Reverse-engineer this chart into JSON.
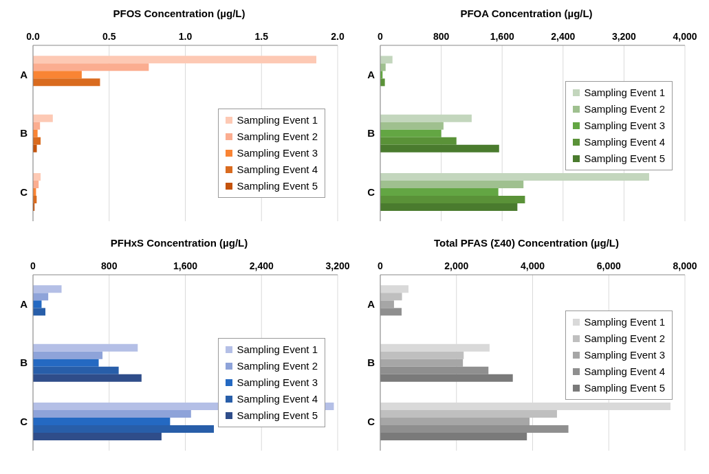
{
  "chart_data": [
    {
      "type": "bar",
      "orientation": "horizontal",
      "title": "PFOS Concentration (µg/L)",
      "categories": [
        "A",
        "B",
        "C"
      ],
      "xlim": [
        0,
        2
      ],
      "xticks": [
        {
          "value": 0,
          "label": "0.0"
        },
        0.5,
        {
          "value": 1,
          "label": "1.0"
        },
        1.5,
        {
          "value": 2,
          "label": "2.0"
        }
      ],
      "grid": "x",
      "legend": "right",
      "series": [
        {
          "name": "Sampling Event 1",
          "color": "#fdc9b4",
          "values": [
            1.86,
            0.13,
            0.05
          ]
        },
        {
          "name": "Sampling Event 2",
          "color": "#fbad90",
          "values": [
            0.76,
            0.046,
            0.037
          ]
        },
        {
          "name": "Sampling Event 3",
          "color": "#f98434",
          "values": [
            0.32,
            0.03,
            0.02
          ]
        },
        {
          "name": "Sampling Event 4",
          "color": "#d96b1f",
          "values": [
            0.44,
            0.05,
            0.024
          ]
        },
        {
          "name": "Sampling Event 5",
          "color": "#c4530c",
          "values": [
            null,
            0.025,
            0.01
          ]
        }
      ]
    },
    {
      "type": "bar",
      "orientation": "horizontal",
      "title": "PFOA Concentration (µg/L)",
      "categories": [
        "A",
        "B",
        "C"
      ],
      "xlim": [
        0,
        4000
      ],
      "xticks": [
        0,
        800,
        {
          "value": 1600,
          "label": "1,600"
        },
        {
          "value": 2400,
          "label": "2,400"
        },
        {
          "value": 3200,
          "label": "3,200"
        },
        {
          "value": 4000,
          "label": "4,000"
        }
      ],
      "grid": "x",
      "legend": "top right",
      "series": [
        {
          "name": "Sampling Event 1",
          "color": "#c3d6bd",
          "values": [
            160,
            1200,
            3530
          ]
        },
        {
          "name": "Sampling Event 2",
          "color": "#9fc08f",
          "values": [
            70,
            830,
            1880
          ]
        },
        {
          "name": "Sampling Event 3",
          "color": "#63a643",
          "values": [
            30,
            800,
            1550
          ]
        },
        {
          "name": "Sampling Event 4",
          "color": "#5a9238",
          "values": [
            60,
            1000,
            1900
          ]
        },
        {
          "name": "Sampling Event 5",
          "color": "#4a7b2e",
          "values": [
            null,
            1560,
            1800
          ]
        }
      ]
    },
    {
      "type": "bar",
      "orientation": "horizontal",
      "title": "PFHxS Concentration (µg/L)",
      "categories": [
        "A",
        "B",
        "C"
      ],
      "xlim": [
        0,
        3200
      ],
      "xticks": [
        0,
        800,
        {
          "value": 1600,
          "label": "1,600"
        },
        {
          "value": 2400,
          "label": "2,400"
        },
        {
          "value": 3200,
          "label": "3,200"
        }
      ],
      "grid": "x",
      "legend": "right",
      "series": [
        {
          "name": "Sampling Event 1",
          "color": "#b4bfe6",
          "values": [
            300,
            1100,
            3160
          ]
        },
        {
          "name": "Sampling Event 2",
          "color": "#8ea3d9",
          "values": [
            160,
            730,
            1660
          ]
        },
        {
          "name": "Sampling Event 3",
          "color": "#2469c2",
          "values": [
            90,
            690,
            1440
          ]
        },
        {
          "name": "Sampling Event 4",
          "color": "#285ea9",
          "values": [
            130,
            900,
            1900
          ]
        },
        {
          "name": "Sampling Event 5",
          "color": "#2f4d8a",
          "values": [
            null,
            1140,
            1350
          ]
        }
      ]
    },
    {
      "type": "bar",
      "orientation": "horizontal",
      "title": "Total PFAS (Σ40) Concentration (µg/L)",
      "categories": [
        "A",
        "B",
        "C"
      ],
      "xlim": [
        0,
        8000
      ],
      "xticks": [
        0,
        {
          "value": 2000,
          "label": "2,000"
        },
        {
          "value": 4000,
          "label": "4,000"
        },
        {
          "value": 6000,
          "label": "6,000"
        },
        {
          "value": 8000,
          "label": "8,000"
        }
      ],
      "grid": "x",
      "legend": "top right",
      "series": [
        {
          "name": "Sampling Event 1",
          "color": "#d9d9d9",
          "values": [
            740,
            2870,
            7620
          ]
        },
        {
          "name": "Sampling Event 2",
          "color": "#bfbfbf",
          "values": [
            570,
            2190,
            4640
          ]
        },
        {
          "name": "Sampling Event 3",
          "color": "#a6a6a6",
          "values": [
            360,
            2170,
            3920
          ]
        },
        {
          "name": "Sampling Event 4",
          "color": "#8f8f8f",
          "values": [
            560,
            2840,
            4940
          ]
        },
        {
          "name": "Sampling Event 5",
          "color": "#7a7a7a",
          "values": [
            null,
            3480,
            3850
          ]
        }
      ]
    }
  ]
}
